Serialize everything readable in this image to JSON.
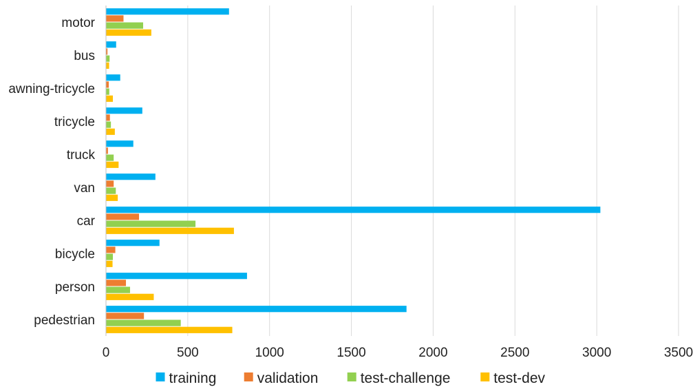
{
  "chart_data": {
    "type": "bar",
    "orientation": "horizontal",
    "categories": [
      "motor",
      "bus",
      "awning-tricycle",
      "tricycle",
      "truck",
      "van",
      "car",
      "bicycle",
      "person",
      "pedestrian"
    ],
    "series": [
      {
        "name": "training",
        "color": "#00B0F0",
        "values": [
          750,
          60,
          85,
          220,
          165,
          300,
          3020,
          325,
          860,
          1835
        ]
      },
      {
        "name": "validation",
        "color": "#ED7D31",
        "values": [
          105,
          7,
          15,
          22,
          10,
          45,
          200,
          55,
          120,
          230
        ]
      },
      {
        "name": "test-challenge",
        "color": "#92D050",
        "values": [
          225,
          20,
          18,
          28,
          45,
          58,
          545,
          40,
          145,
          455
        ]
      },
      {
        "name": "test-dev",
        "color": "#FFC000",
        "values": [
          275,
          17,
          40,
          52,
          75,
          70,
          780,
          38,
          290,
          770
        ]
      }
    ],
    "xlim": [
      0,
      3500
    ],
    "x_ticks": [
      0,
      500,
      1000,
      1500,
      2000,
      2500,
      3000,
      3500
    ],
    "grid": true,
    "legend_position": "bottom"
  }
}
